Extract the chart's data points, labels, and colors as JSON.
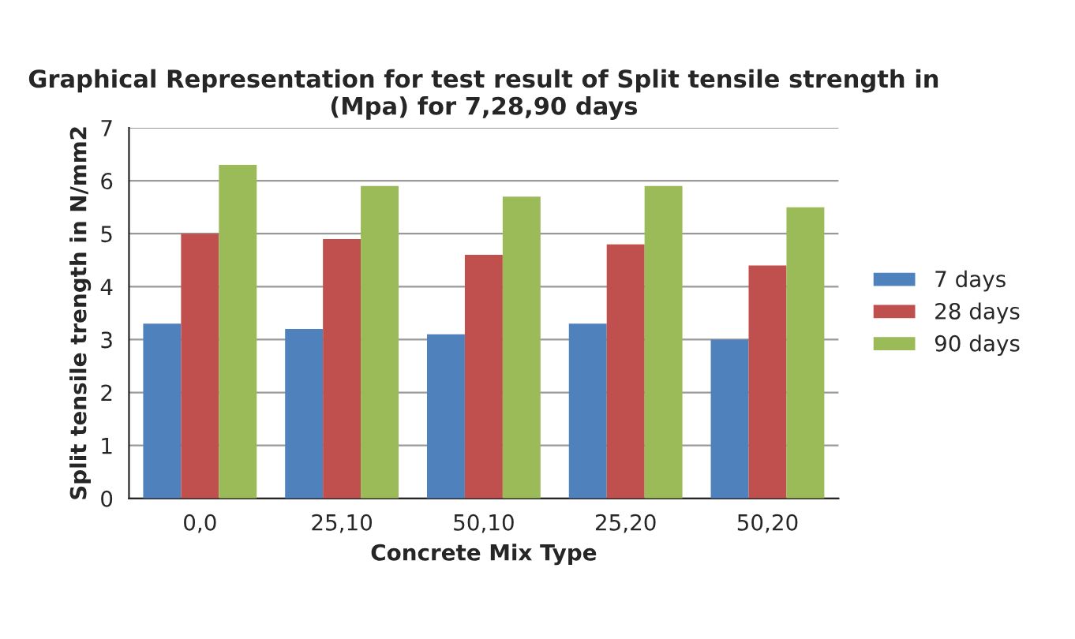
{
  "chart_data": {
    "type": "bar",
    "title": "Graphical Representation for test result of Split tensile strength in\n(Mpa) for 7,28,90 days",
    "xlabel": "Concrete Mix Type",
    "ylabel": "Split tensile trength in N/mm2",
    "categories": [
      "0,0",
      "25,10",
      "50,10",
      "25,20",
      "50,20"
    ],
    "series": [
      {
        "name": "7 days",
        "color": "#4f81bd",
        "values": [
          3.3,
          3.2,
          3.1,
          3.3,
          3.0
        ]
      },
      {
        "name": "28 days",
        "color": "#c0504d",
        "values": [
          5.0,
          4.9,
          4.6,
          4.8,
          4.4
        ]
      },
      {
        "name": "90 days",
        "color": "#9bbb59",
        "values": [
          6.3,
          5.9,
          5.7,
          5.9,
          5.5
        ]
      }
    ],
    "ylim": [
      0,
      7
    ],
    "yticks": [
      0,
      1,
      2,
      3,
      4,
      5,
      6,
      7
    ],
    "grid": "y",
    "legend": "right"
  }
}
